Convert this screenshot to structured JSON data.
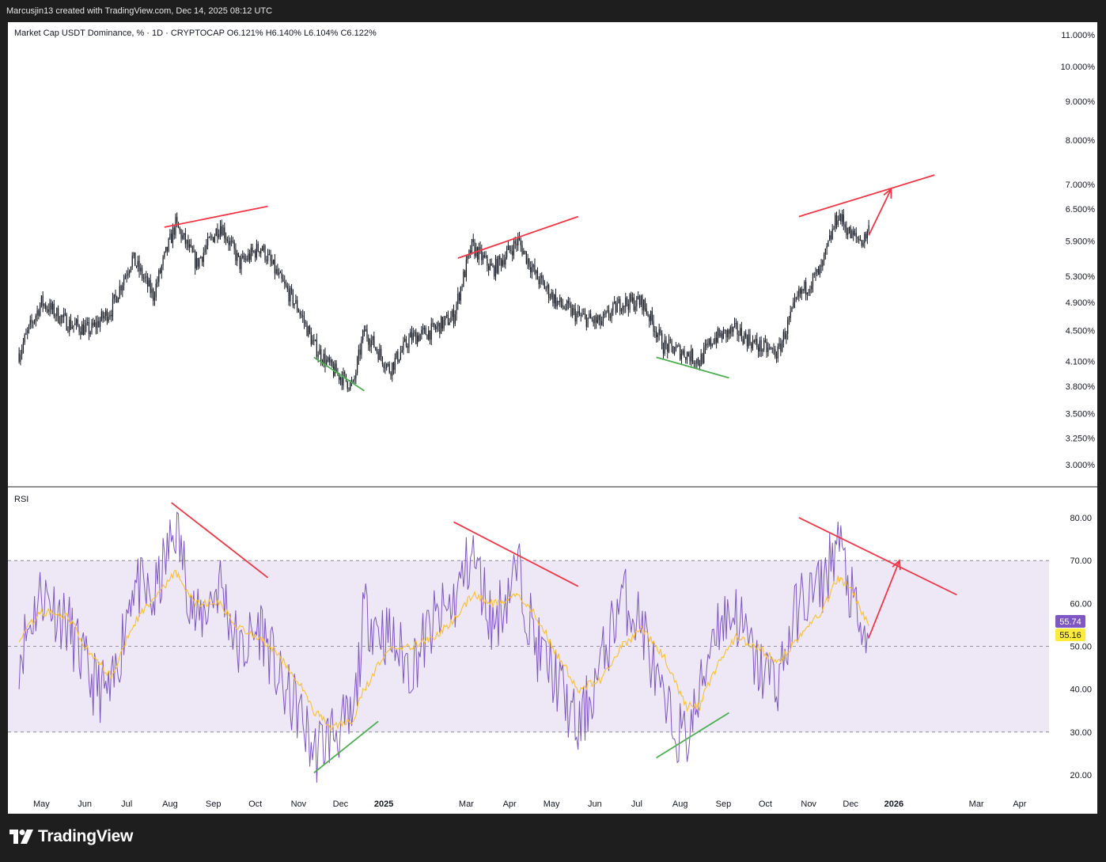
{
  "header": {
    "attribution": "Marcusjin13 created with TradingView.com, Dec 14, 2025 08:12 UTC"
  },
  "main_pane": {
    "legend": "Market Cap USDT Dominance, % · 1D · CRYPTOCAP  O6.121%  H6.140%  L6.104%  C6.122%"
  },
  "rsi_pane": {
    "label": "RSI",
    "rsi_badge": "55.74",
    "ma_badge": "55.16",
    "colors": {
      "rsi": "#7e57c2",
      "ma": "#fbc02d",
      "band": "#ede7f6",
      "badge_rsi": "#7e57c2",
      "badge_ma": "#ffeb3b"
    }
  },
  "footer": {
    "brand": "TradingView"
  },
  "colors": {
    "trendline_red": "#f23645",
    "trendline_green": "#4caf50",
    "candles": "#131722"
  },
  "chart_data": [
    {
      "type": "candlestick",
      "title": "Market Cap USDT Dominance, %",
      "timeframe": "1D",
      "source": "CRYPTOCAP",
      "last": {
        "open": 6.121,
        "high": 6.14,
        "low": 6.104,
        "close": 6.122
      },
      "y_scale": "log",
      "ylim": [
        2.8,
        11.3
      ],
      "y_ticks": [
        "11.000%",
        "10.000%",
        "9.000%",
        "8.000%",
        "7.000%",
        "6.500%",
        "5.900%",
        "5.300%",
        "4.900%",
        "4.500%",
        "4.100%",
        "3.800%",
        "3.500%",
        "3.250%",
        "3.000%"
      ],
      "x_ticks": [
        "May",
        "Jun",
        "Jul",
        "Aug",
        "Sep",
        "Oct",
        "Nov",
        "Dec",
        "2025",
        "Mar",
        "Apr",
        "May",
        "Jun",
        "Jul",
        "Aug",
        "Sep",
        "Oct",
        "Nov",
        "Dec",
        "2026",
        "Mar",
        "Apr"
      ],
      "close_series": {
        "dates": [
          "2024-04-15",
          "2024-05-01",
          "2024-05-20",
          "2024-06-05",
          "2024-06-20",
          "2024-07-05",
          "2024-07-20",
          "2024-08-05",
          "2024-08-20",
          "2024-09-06",
          "2024-09-20",
          "2024-10-05",
          "2024-10-20",
          "2024-11-01",
          "2024-11-12",
          "2024-11-25",
          "2024-12-10",
          "2024-12-18",
          "2025-01-05",
          "2025-01-20",
          "2025-02-05",
          "2025-02-20",
          "2025-03-05",
          "2025-03-20",
          "2025-04-07",
          "2025-04-20",
          "2025-05-05",
          "2025-05-20",
          "2025-06-05",
          "2025-06-20",
          "2025-07-05",
          "2025-07-20",
          "2025-08-05",
          "2025-08-15",
          "2025-08-25",
          "2025-09-10",
          "2025-09-25",
          "2025-10-10",
          "2025-10-25",
          "2025-11-10",
          "2025-11-22",
          "2025-12-01",
          "2025-12-10",
          "2025-12-14"
        ],
        "values": [
          4.2,
          4.9,
          4.6,
          4.5,
          4.8,
          5.6,
          5.0,
          6.2,
          5.5,
          6.2,
          5.5,
          5.8,
          5.2,
          4.8,
          4.3,
          4.0,
          3.8,
          4.5,
          4.0,
          4.4,
          4.5,
          4.7,
          5.8,
          5.4,
          5.9,
          5.3,
          4.9,
          4.7,
          4.6,
          4.9,
          4.9,
          4.3,
          4.2,
          4.1,
          4.4,
          4.5,
          4.3,
          4.2,
          5.0,
          5.4,
          6.4,
          6.0,
          5.9,
          6.122
        ]
      },
      "annotations": [
        {
          "type": "trendline",
          "color": "red",
          "from": [
            "2024-07-28",
            6.15
          ],
          "to": [
            "2024-10-10",
            6.55
          ]
        },
        {
          "type": "trendline",
          "color": "green",
          "from": [
            "2024-11-12",
            4.15
          ],
          "to": [
            "2024-12-18",
            3.75
          ]
        },
        {
          "type": "trendline",
          "color": "red",
          "from": [
            "2025-02-23",
            5.6
          ],
          "to": [
            "2025-05-20",
            6.35
          ]
        },
        {
          "type": "trendline",
          "color": "green",
          "from": [
            "2025-07-15",
            4.15
          ],
          "to": [
            "2025-09-05",
            3.9
          ]
        },
        {
          "type": "trendline",
          "color": "red",
          "from": [
            "2025-10-25",
            6.35
          ],
          "to": [
            "2026-01-30",
            7.2
          ]
        },
        {
          "type": "arrow",
          "color": "red",
          "from": [
            "2025-12-14",
            6.0
          ],
          "to": [
            "2025-12-30",
            6.9
          ]
        }
      ]
    },
    {
      "type": "line",
      "title": "RSI",
      "ylim": [
        15,
        85
      ],
      "y_ticks": [
        "80.00",
        "70.00",
        "60.00",
        "50.00",
        "40.00",
        "30.00",
        "20.00"
      ],
      "band": [
        30,
        70
      ],
      "midline": 50,
      "x": [
        "2024-04-15",
        "2024-05-01",
        "2024-05-20",
        "2024-06-05",
        "2024-06-20",
        "2024-07-05",
        "2024-07-20",
        "2024-08-05",
        "2024-08-20",
        "2024-09-06",
        "2024-09-20",
        "2024-10-05",
        "2024-10-20",
        "2024-11-01",
        "2024-11-12",
        "2024-11-25",
        "2024-12-10",
        "2024-12-18",
        "2025-01-05",
        "2025-01-20",
        "2025-02-05",
        "2025-02-20",
        "2025-03-05",
        "2025-03-20",
        "2025-04-07",
        "2025-04-20",
        "2025-05-05",
        "2025-05-20",
        "2025-06-05",
        "2025-06-20",
        "2025-07-05",
        "2025-07-20",
        "2025-08-05",
        "2025-08-15",
        "2025-08-25",
        "2025-09-10",
        "2025-09-25",
        "2025-10-10",
        "2025-10-25",
        "2025-11-10",
        "2025-11-22",
        "2025-12-01",
        "2025-12-10",
        "2025-12-14"
      ],
      "series": [
        {
          "name": "RSI",
          "values": [
            48,
            63,
            55,
            42,
            38,
            65,
            60,
            78,
            55,
            65,
            48,
            55,
            40,
            35,
            25,
            30,
            32,
            58,
            52,
            45,
            55,
            60,
            72,
            55,
            68,
            50,
            42,
            30,
            45,
            62,
            55,
            35,
            28,
            38,
            55,
            58,
            45,
            42,
            60,
            64,
            75,
            62,
            50,
            55.74
          ]
        },
        {
          "name": "MA",
          "values": [
            52,
            58,
            57,
            48,
            43,
            55,
            61,
            67,
            60,
            60,
            54,
            52,
            47,
            42,
            35,
            31,
            33,
            40,
            50,
            50,
            52,
            56,
            62,
            60,
            62,
            57,
            48,
            40,
            42,
            50,
            54,
            48,
            36,
            36,
            44,
            52,
            50,
            46,
            52,
            58,
            66,
            64,
            57,
            55.16
          ]
        }
      ],
      "annotations": [
        {
          "type": "trendline",
          "color": "red",
          "from": [
            "2024-08-02",
            83.5
          ],
          "to": [
            "2024-10-10",
            66
          ]
        },
        {
          "type": "trendline",
          "color": "green",
          "from": [
            "2024-11-12",
            20.5
          ],
          "to": [
            "2024-12-28",
            32.5
          ]
        },
        {
          "type": "trendline",
          "color": "red",
          "from": [
            "2025-02-20",
            79
          ],
          "to": [
            "2025-05-20",
            64
          ]
        },
        {
          "type": "trendline",
          "color": "green",
          "from": [
            "2025-07-15",
            24
          ],
          "to": [
            "2025-09-05",
            34.5
          ]
        },
        {
          "type": "trendline",
          "color": "red",
          "from": [
            "2025-10-25",
            80
          ],
          "to": [
            "2026-02-15",
            62
          ]
        },
        {
          "type": "arrow",
          "color": "red",
          "from": [
            "2025-12-14",
            52
          ],
          "to": [
            "2026-01-05",
            70
          ]
        }
      ]
    }
  ]
}
